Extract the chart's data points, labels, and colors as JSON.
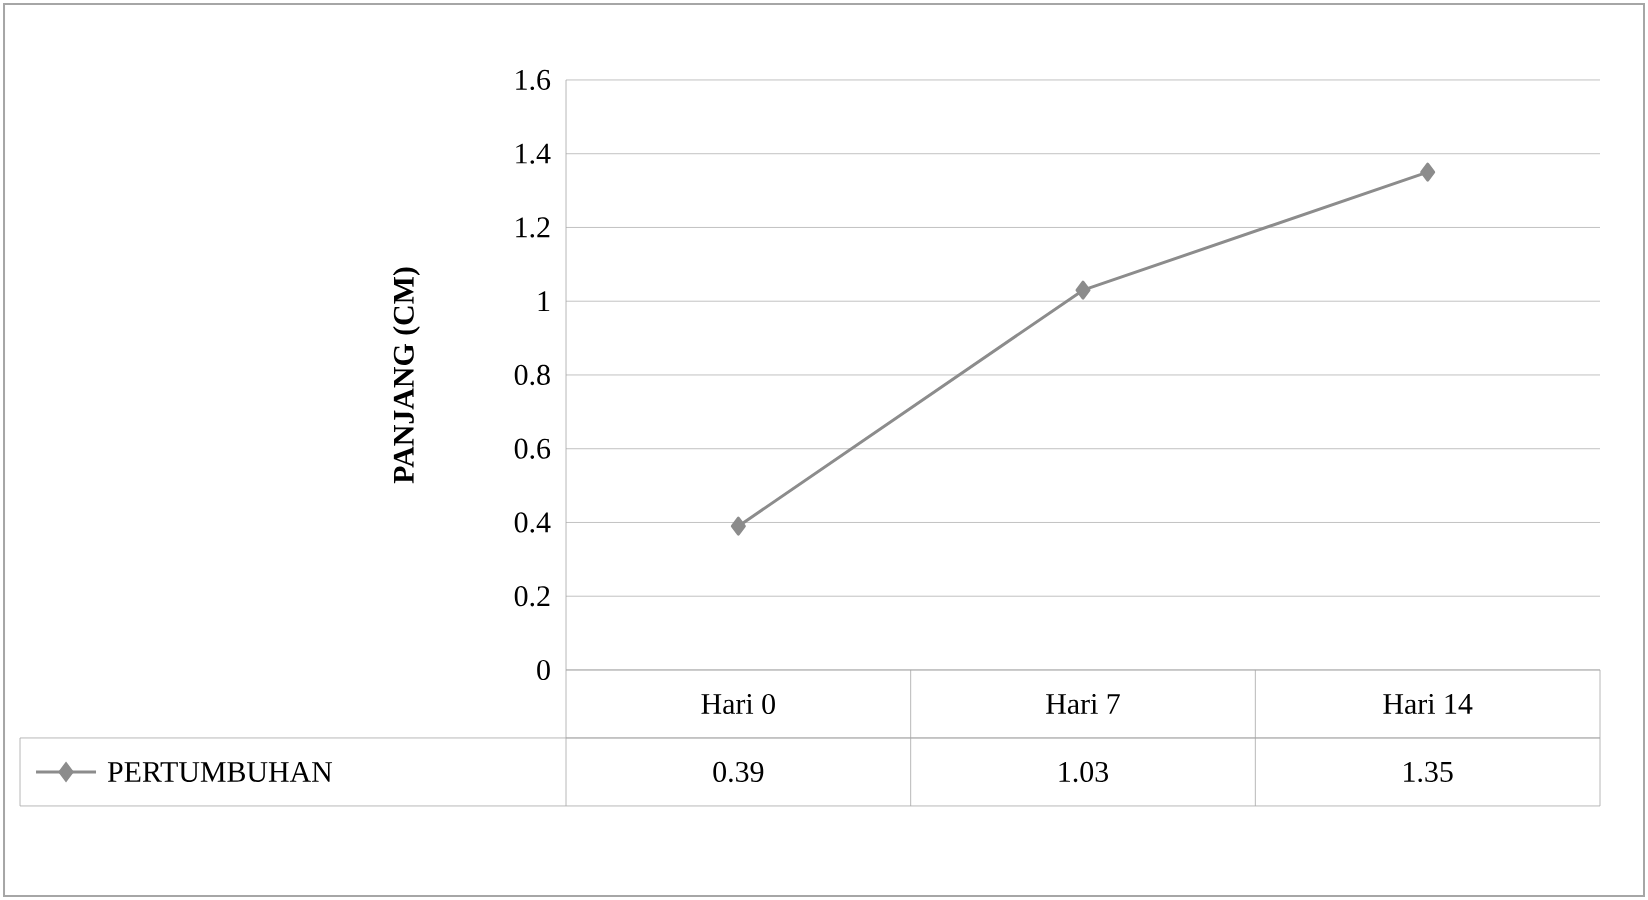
{
  "chart_data": {
    "type": "line",
    "ylabel": "PANJANG (CM)",
    "categories": [
      "Hari 0",
      "Hari 7",
      "Hari 14"
    ],
    "series": [
      {
        "name": "PERTUMBUHAN",
        "color": "#8c8c8c",
        "values": [
          0.39,
          1.03,
          1.35
        ]
      }
    ],
    "ylim": [
      0,
      1.6
    ],
    "yticks": [
      0,
      0.2,
      0.4,
      0.6,
      0.8,
      1,
      1.2,
      1.4,
      1.6
    ],
    "grid": "y",
    "marker": "diamond",
    "line_style": "solid",
    "legend": "bottom",
    "data_labels": true
  }
}
